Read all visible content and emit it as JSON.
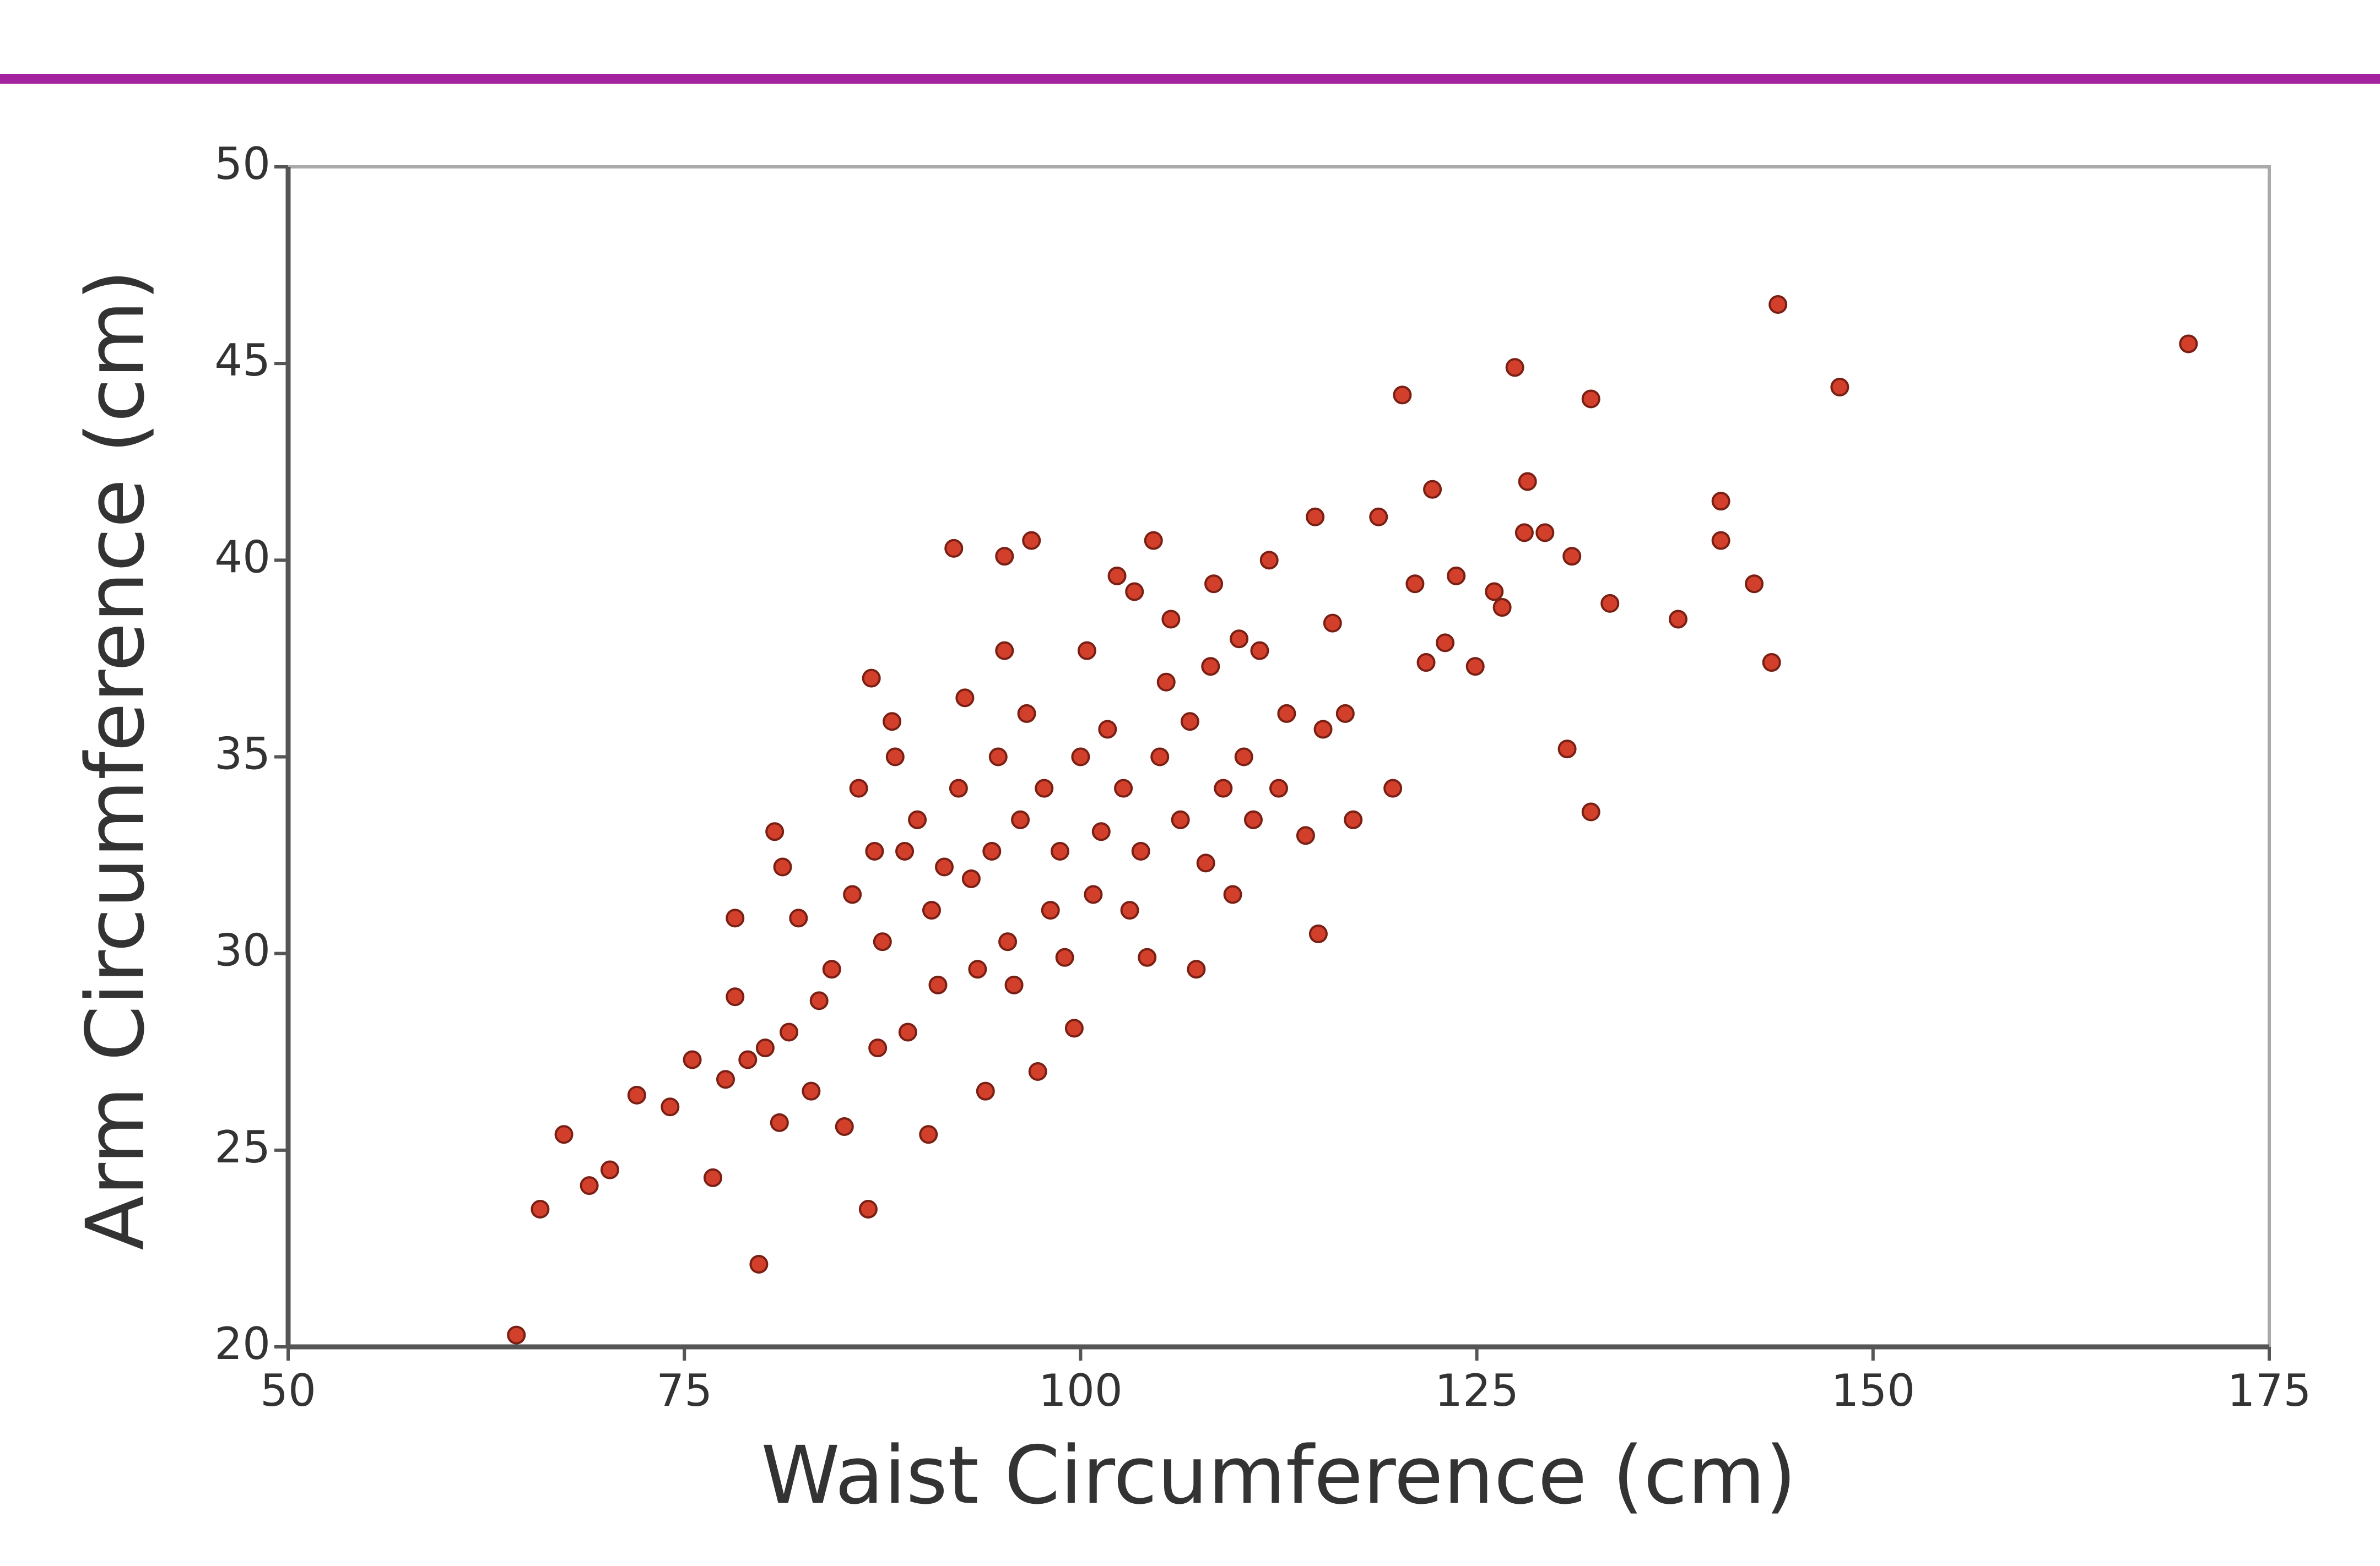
{
  "chart_data": {
    "type": "scatter",
    "xlabel": "Waist Circumference (cm)",
    "ylabel": "Arm Circumference (cm)",
    "color": "#d2402c",
    "xlim": [
      50,
      175
    ],
    "xticks": [
      50,
      75,
      100,
      125,
      150,
      175
    ],
    "ylim": [
      20,
      50
    ],
    "yticks": [
      20,
      25,
      30,
      35,
      40,
      45,
      50
    ],
    "grid": false,
    "x": [
      64.4,
      65.9,
      67.4,
      69.0,
      70.3,
      72.0,
      74.1,
      75.5,
      76.8,
      77.6,
      78.2,
      78.2,
      79.0,
      79.7,
      80.1,
      80.7,
      81.0,
      81.2,
      81.6,
      82.2,
      83.0,
      83.5,
      84.3,
      85.1,
      85.6,
      86.0,
      86.6,
      86.8,
      87.0,
      87.2,
      87.5,
      88.1,
      88.3,
      88.9,
      89.1,
      89.7,
      90.4,
      90.6,
      91.0,
      91.4,
      92.0,
      92.3,
      92.7,
      93.1,
      93.5,
      94.0,
      94.4,
      94.8,
      95.2,
      95.2,
      95.4,
      95.8,
      96.2,
      96.6,
      96.9,
      97.3,
      97.7,
      98.1,
      98.7,
      99.0,
      99.6,
      100.0,
      100.4,
      100.8,
      101.3,
      101.7,
      102.3,
      102.7,
      103.1,
      103.4,
      103.8,
      104.2,
      104.6,
      105.0,
      105.4,
      105.7,
      106.3,
      106.9,
      107.3,
      107.9,
      108.2,
      108.4,
      109.0,
      109.6,
      110.0,
      110.3,
      110.9,
      111.3,
      111.9,
      112.5,
      113.0,
      114.2,
      114.8,
      115.0,
      115.3,
      115.9,
      116.7,
      117.2,
      118.8,
      119.7,
      120.3,
      121.1,
      121.8,
      122.2,
      123.0,
      123.7,
      124.9,
      126.1,
      126.6,
      127.4,
      128.0,
      128.2,
      129.3,
      130.7,
      131.0,
      132.2,
      132.2,
      133.4,
      137.7,
      140.4,
      140.4,
      142.5,
      143.6,
      144.0,
      147.9,
      169.9
    ],
    "values": [
      20.3,
      23.5,
      25.4,
      24.1,
      24.5,
      26.4,
      26.1,
      27.3,
      24.3,
      26.8,
      28.9,
      30.9,
      27.3,
      22.1,
      27.6,
      33.1,
      25.7,
      32.2,
      28.0,
      30.9,
      26.5,
      28.8,
      29.6,
      25.6,
      31.5,
      34.2,
      23.5,
      37.0,
      32.6,
      27.6,
      30.3,
      35.9,
      35.0,
      32.6,
      28.0,
      33.4,
      25.4,
      31.1,
      29.2,
      32.2,
      40.3,
      34.2,
      36.5,
      31.9,
      29.6,
      26.5,
      32.6,
      35.0,
      40.1,
      37.7,
      30.3,
      29.2,
      33.4,
      36.1,
      40.5,
      27.0,
      34.2,
      31.1,
      32.6,
      29.9,
      28.1,
      35.0,
      37.7,
      31.5,
      33.1,
      35.7,
      39.6,
      34.2,
      31.1,
      39.2,
      32.6,
      29.9,
      40.5,
      35.0,
      36.9,
      38.5,
      33.4,
      35.9,
      29.6,
      32.3,
      37.3,
      39.4,
      34.2,
      31.5,
      38.0,
      35.0,
      33.4,
      37.7,
      40.0,
      34.2,
      36.1,
      33.0,
      41.1,
      30.5,
      35.7,
      38.4,
      36.1,
      33.4,
      41.1,
      34.2,
      44.2,
      39.4,
      37.4,
      41.8,
      37.9,
      39.6,
      37.3,
      39.2,
      38.8,
      44.9,
      40.7,
      42.0,
      40.7,
      35.2,
      40.1,
      44.1,
      33.6,
      38.9,
      38.5,
      41.5,
      40.5,
      39.4,
      37.4,
      46.5,
      44.4,
      45.5
    ]
  }
}
